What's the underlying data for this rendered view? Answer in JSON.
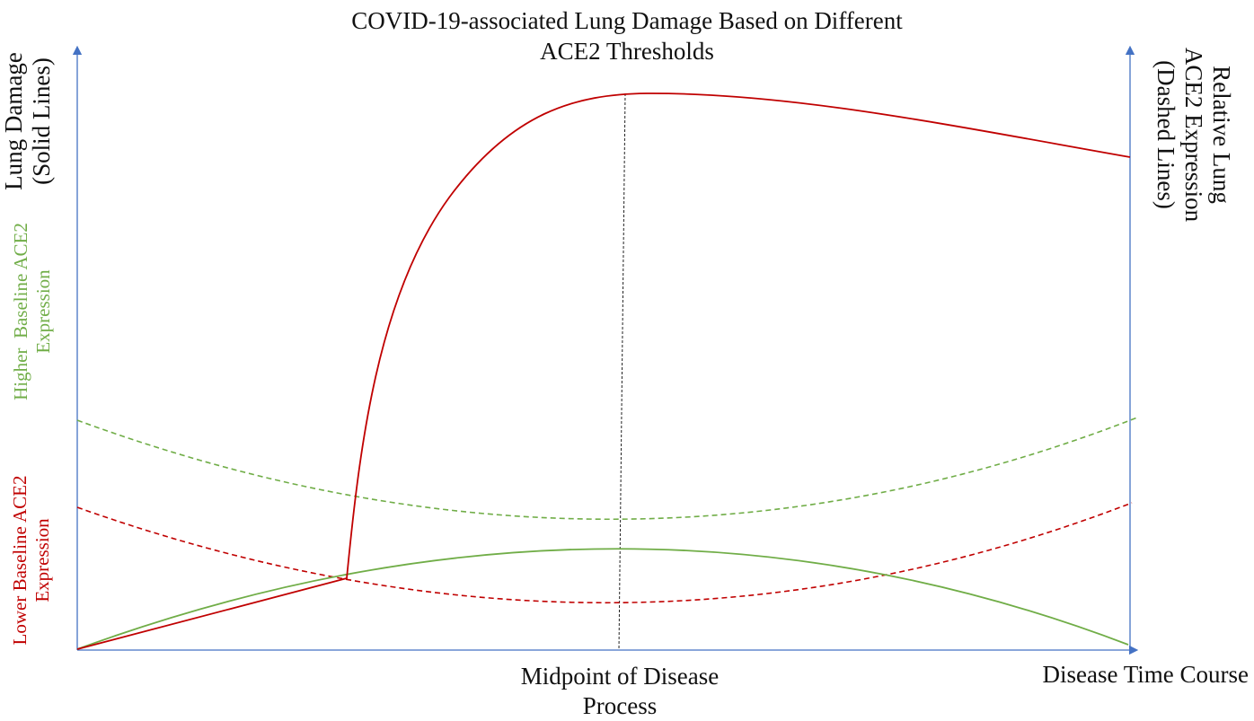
{
  "diagram": {
    "title_lines": [
      "COVID-19-associated Lung Damage Based on Different",
      "ACE2 Thresholds"
    ],
    "left_axis_label_lines": [
      "Lung Damage",
      "(Solid Lines)"
    ],
    "right_axis_label_lines": [
      "Relative Lung",
      "ACE2 Expression",
      "(Dashed Lines)"
    ],
    "x_axis_label": "Disease Time Course",
    "midpoint_label_lines": [
      "Midpoint of Disease",
      "Process"
    ],
    "legend": {
      "higher": {
        "lines": [
          "Higher  Baseline ACE2",
          "Expression"
        ],
        "color": "#70AD47"
      },
      "lower": {
        "lines": [
          "Lower Baseline ACE2",
          "Expression"
        ],
        "color": "#C00000"
      }
    },
    "axis_color": "#4472C4",
    "text_color": "#111111"
  }
}
